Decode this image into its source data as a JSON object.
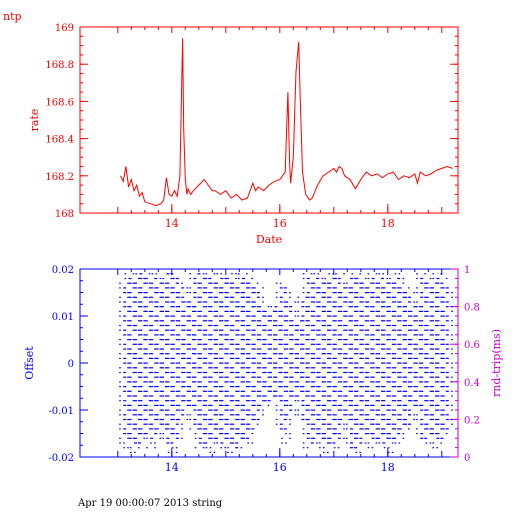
{
  "page": {
    "label": "ntp",
    "footer": "Apr 19 00:00:07 2013 string"
  },
  "colors": {
    "rate": "#ff0000",
    "offset": "#0000ff",
    "rtt": "#cc00cc",
    "text": "#000000"
  },
  "chart_data": [
    {
      "type": "line",
      "title": "",
      "xlabel": "Date",
      "ylabel": "rate",
      "xlim": [
        12.3,
        19.3
      ],
      "ylim": [
        168,
        169
      ],
      "x_ticks": [
        14,
        16,
        18
      ],
      "x_tick_labels": [
        "14",
        "16",
        "18"
      ],
      "y_ticks": [
        168,
        168.2,
        168.4,
        168.6,
        168.8,
        169
      ],
      "y_tick_labels": [
        "168",
        "168.2",
        "168.4",
        "168.6",
        "168.8",
        "169"
      ],
      "series": [
        {
          "name": "",
          "x": [
            13.05,
            13.1,
            13.15,
            13.2,
            13.25,
            13.3,
            13.35,
            13.4,
            13.45,
            13.5,
            13.6,
            13.7,
            13.8,
            13.85,
            13.9,
            13.95,
            14.0,
            14.05,
            14.1,
            14.15,
            14.2,
            14.22,
            14.25,
            14.28,
            14.3,
            14.35,
            14.4,
            14.5,
            14.6,
            14.7,
            14.75,
            14.8,
            14.9,
            15.0,
            15.1,
            15.2,
            15.3,
            15.4,
            15.5,
            15.55,
            15.6,
            15.7,
            15.8,
            15.9,
            16.0,
            16.1,
            16.12,
            16.15,
            16.18,
            16.2,
            16.25,
            16.3,
            16.35,
            16.38,
            16.42,
            16.48,
            16.55,
            16.6,
            16.7,
            16.8,
            16.9,
            17.0,
            17.05,
            17.1,
            17.15,
            17.2,
            17.3,
            17.4,
            17.5,
            17.6,
            17.7,
            17.8,
            17.9,
            18.0,
            18.1,
            18.2,
            18.3,
            18.4,
            18.5,
            18.55,
            18.6,
            18.7,
            18.8,
            18.9,
            19.0,
            19.1,
            19.2
          ],
          "y": [
            168.2,
            168.17,
            168.25,
            168.14,
            168.18,
            168.12,
            168.15,
            168.09,
            168.11,
            168.06,
            168.05,
            168.04,
            168.05,
            168.07,
            168.19,
            168.1,
            168.09,
            168.12,
            168.09,
            168.2,
            168.94,
            168.45,
            168.18,
            168.1,
            168.13,
            168.1,
            168.12,
            168.15,
            168.18,
            168.14,
            168.12,
            168.12,
            168.1,
            168.12,
            168.08,
            168.1,
            168.07,
            168.08,
            168.16,
            168.12,
            168.14,
            168.12,
            168.15,
            168.17,
            168.18,
            168.22,
            168.4,
            168.65,
            168.28,
            168.16,
            168.3,
            168.76,
            168.92,
            168.6,
            168.22,
            168.1,
            168.07,
            168.08,
            168.15,
            168.2,
            168.22,
            168.24,
            168.22,
            168.25,
            168.24,
            168.2,
            168.18,
            168.13,
            168.18,
            168.22,
            168.2,
            168.21,
            168.19,
            168.21,
            168.22,
            168.18,
            168.2,
            168.19,
            168.21,
            168.16,
            168.22,
            168.2,
            168.21,
            168.23,
            168.24,
            168.25,
            168.24
          ]
        }
      ]
    },
    {
      "type": "scatter",
      "title": "",
      "xlabel": "",
      "ylabel": "Offset",
      "ylabel_right": "rnd-trip(ms)",
      "xlim": [
        12.3,
        19.3
      ],
      "ylim": [
        -0.02,
        0.02
      ],
      "ylim_right": [
        0,
        1
      ],
      "x_ticks": [
        14,
        16,
        18
      ],
      "x_tick_labels": [
        "14",
        "16",
        "18"
      ],
      "y_ticks": [
        -0.02,
        -0.01,
        0,
        0.01,
        0.02
      ],
      "y_tick_labels": [
        "-0.02",
        "-0.01",
        "0",
        "0.01",
        "0.02"
      ],
      "y_ticks_right": [
        0,
        0.2,
        0.4,
        0.6,
        0.8,
        1
      ],
      "y_tick_labels_right": [
        "0",
        "0.2",
        "0.4",
        "0.6",
        "0.8",
        "1"
      ],
      "offset_step": 0.001,
      "columns": [
        {
          "x": 13.1,
          "lo": -0.018,
          "hi": 0.017
        },
        {
          "x": 13.2,
          "lo": -0.016,
          "hi": 0.019
        },
        {
          "x": 13.3,
          "lo": -0.019,
          "hi": 0.018
        },
        {
          "x": 13.4,
          "lo": -0.017,
          "hi": 0.019
        },
        {
          "x": 13.5,
          "lo": -0.015,
          "hi": 0.019
        },
        {
          "x": 13.6,
          "lo": -0.018,
          "hi": 0.018
        },
        {
          "x": 13.7,
          "lo": -0.016,
          "hi": 0.019
        },
        {
          "x": 13.8,
          "lo": -0.014,
          "hi": 0.017
        },
        {
          "x": 13.9,
          "lo": -0.017,
          "hi": 0.019
        },
        {
          "x": 14.0,
          "lo": -0.019,
          "hi": 0.019
        },
        {
          "x": 14.1,
          "lo": -0.016,
          "hi": 0.018
        },
        {
          "x": 14.2,
          "lo": -0.012,
          "hi": 0.016
        },
        {
          "x": 14.3,
          "lo": -0.009,
          "hi": 0.013
        },
        {
          "x": 14.4,
          "lo": -0.014,
          "hi": 0.019
        },
        {
          "x": 14.5,
          "lo": -0.018,
          "hi": 0.019
        },
        {
          "x": 14.6,
          "lo": -0.017,
          "hi": 0.018
        },
        {
          "x": 14.7,
          "lo": -0.019,
          "hi": 0.019
        },
        {
          "x": 14.8,
          "lo": -0.016,
          "hi": 0.017
        },
        {
          "x": 14.9,
          "lo": -0.018,
          "hi": 0.019
        },
        {
          "x": 15.0,
          "lo": -0.017,
          "hi": 0.018
        },
        {
          "x": 15.1,
          "lo": -0.019,
          "hi": 0.019
        },
        {
          "x": 15.2,
          "lo": -0.018,
          "hi": 0.017
        },
        {
          "x": 15.3,
          "lo": -0.016,
          "hi": 0.019
        },
        {
          "x": 15.4,
          "lo": -0.017,
          "hi": 0.018
        },
        {
          "x": 15.5,
          "lo": -0.014,
          "hi": 0.017
        },
        {
          "x": 15.6,
          "lo": -0.012,
          "hi": 0.016
        },
        {
          "x": 15.7,
          "lo": -0.009,
          "hi": 0.012
        },
        {
          "x": 15.8,
          "lo": -0.008,
          "hi": 0.011
        },
        {
          "x": 15.9,
          "lo": -0.007,
          "hi": 0.012
        },
        {
          "x": 16.0,
          "lo": -0.014,
          "hi": 0.017
        },
        {
          "x": 16.1,
          "lo": -0.017,
          "hi": 0.016
        },
        {
          "x": 16.2,
          "lo": -0.011,
          "hi": 0.013
        },
        {
          "x": 16.3,
          "lo": -0.007,
          "hi": 0.009
        },
        {
          "x": 16.4,
          "lo": -0.012,
          "hi": 0.014
        },
        {
          "x": 16.5,
          "lo": -0.018,
          "hi": 0.019
        },
        {
          "x": 16.6,
          "lo": -0.017,
          "hi": 0.018
        },
        {
          "x": 16.7,
          "lo": -0.016,
          "hi": 0.019
        },
        {
          "x": 16.8,
          "lo": -0.019,
          "hi": 0.017
        },
        {
          "x": 16.9,
          "lo": -0.017,
          "hi": 0.019
        },
        {
          "x": 17.0,
          "lo": -0.018,
          "hi": 0.018
        },
        {
          "x": 17.1,
          "lo": -0.016,
          "hi": 0.019
        },
        {
          "x": 17.2,
          "lo": -0.012,
          "hi": 0.016
        },
        {
          "x": 17.3,
          "lo": -0.018,
          "hi": 0.018
        },
        {
          "x": 17.4,
          "lo": -0.019,
          "hi": 0.019
        },
        {
          "x": 17.5,
          "lo": -0.017,
          "hi": 0.018
        },
        {
          "x": 17.6,
          "lo": -0.015,
          "hi": 0.017
        },
        {
          "x": 17.7,
          "lo": -0.018,
          "hi": 0.019
        },
        {
          "x": 17.8,
          "lo": -0.016,
          "hi": 0.018
        },
        {
          "x": 17.9,
          "lo": -0.017,
          "hi": 0.019
        },
        {
          "x": 18.0,
          "lo": -0.019,
          "hi": 0.017
        },
        {
          "x": 18.1,
          "lo": -0.016,
          "hi": 0.018
        },
        {
          "x": 18.2,
          "lo": -0.017,
          "hi": 0.019
        },
        {
          "x": 18.3,
          "lo": -0.014,
          "hi": 0.016
        },
        {
          "x": 18.4,
          "lo": -0.013,
          "hi": 0.015
        },
        {
          "x": 18.5,
          "lo": -0.009,
          "hi": 0.012
        },
        {
          "x": 18.6,
          "lo": -0.016,
          "hi": 0.019
        },
        {
          "x": 18.7,
          "lo": -0.017,
          "hi": 0.018
        },
        {
          "x": 18.8,
          "lo": -0.015,
          "hi": 0.017
        },
        {
          "x": 18.9,
          "lo": -0.018,
          "hi": 0.019
        },
        {
          "x": 19.0,
          "lo": -0.016,
          "hi": 0.018
        },
        {
          "x": 19.1,
          "lo": -0.014,
          "hi": 0.016
        }
      ]
    }
  ]
}
